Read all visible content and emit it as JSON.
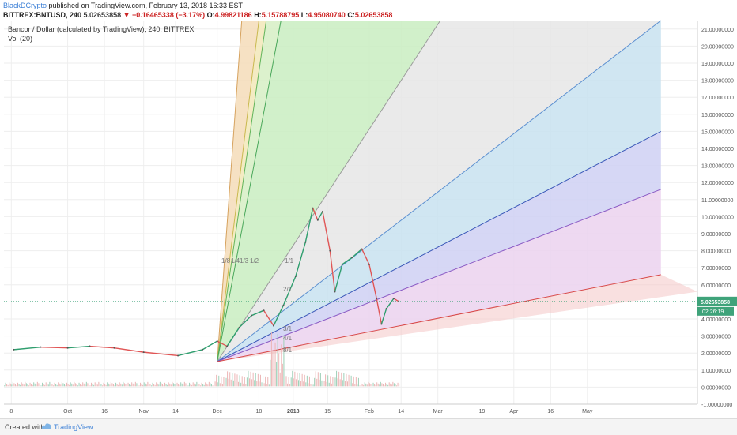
{
  "header": {
    "author": "BlackDCrypto",
    "published": "published on TradingView.com, February 13, 2018 16:33 EST",
    "symbol": "BITTREX:BNTUSD, 240",
    "last": "5.02653858",
    "change": "▼ −0.16465338 (−3.17%)",
    "o_label": "O:",
    "o": "4.99821186",
    "h_label": "H:",
    "h": "5.15788795",
    "l_label": "L:",
    "l": "4.95080740",
    "c_label": "C:",
    "c": "5.02653858"
  },
  "legend": {
    "title": "Bancor / Dollar (calculated by TradingView), 240, BITTREX",
    "vol": "Vol (20)"
  },
  "price_tag": "5.02653858",
  "timer_tag": "02:26:19",
  "footer": {
    "created": "Created with",
    "brand": "TradingView"
  },
  "colors": {
    "up": "#2f9e6e",
    "down": "#e05555",
    "fan_line_red": "#d84a4a",
    "fan_line_blue": "#3a57b8",
    "grid": "#eeeeee",
    "tag": "#3fa37a"
  },
  "chart_data": {
    "type": "line",
    "title": "Bancor / Dollar (calculated by TradingView), 240, BITTREX",
    "ylim": [
      -1,
      21.5
    ],
    "y_ticks": [
      "-1.00000000",
      "0.00000000",
      "1.00000000",
      "2.00000000",
      "3.00000000",
      "4.00000000",
      "5.00000000",
      "6.00000000",
      "7.00000000",
      "8.00000000",
      "9.00000000",
      "10.00000000",
      "11.00000000",
      "12.00000000",
      "13.00000000",
      "14.00000000",
      "15.00000000",
      "16.00000000",
      "17.00000000",
      "18.00000000",
      "19.00000000",
      "20.00000000",
      "21.00000000"
    ],
    "x_ticks": [
      "8",
      "Oct",
      "16",
      "Nov",
      "14",
      "Dec",
      "18",
      "2018",
      "15",
      "Feb",
      "14",
      "Mar",
      "19",
      "Apr",
      "16",
      "May"
    ],
    "price_series": [
      {
        "d": "2017-09-09",
        "v": 2.2
      },
      {
        "d": "2017-09-20",
        "v": 2.35
      },
      {
        "d": "2017-10-01",
        "v": 2.3
      },
      {
        "d": "2017-10-10",
        "v": 2.4
      },
      {
        "d": "2017-10-20",
        "v": 2.3
      },
      {
        "d": "2017-11-01",
        "v": 2.05
      },
      {
        "d": "2017-11-15",
        "v": 1.85
      },
      {
        "d": "2017-11-25",
        "v": 2.2
      },
      {
        "d": "2017-12-01",
        "v": 2.7
      },
      {
        "d": "2017-12-05",
        "v": 2.4
      },
      {
        "d": "2017-12-10",
        "v": 3.5
      },
      {
        "d": "2017-12-15",
        "v": 4.2
      },
      {
        "d": "2017-12-20",
        "v": 4.5
      },
      {
        "d": "2017-12-24",
        "v": 3.6
      },
      {
        "d": "2017-12-28",
        "v": 4.8
      },
      {
        "d": "2018-01-02",
        "v": 6.5
      },
      {
        "d": "2018-01-06",
        "v": 8.5
      },
      {
        "d": "2018-01-09",
        "v": 10.5
      },
      {
        "d": "2018-01-11",
        "v": 9.8
      },
      {
        "d": "2018-01-13",
        "v": 10.3
      },
      {
        "d": "2018-01-16",
        "v": 8.0
      },
      {
        "d": "2018-01-18",
        "v": 5.6
      },
      {
        "d": "2018-01-21",
        "v": 7.2
      },
      {
        "d": "2018-01-25",
        "v": 7.6
      },
      {
        "d": "2018-01-29",
        "v": 8.1
      },
      {
        "d": "2018-02-01",
        "v": 7.2
      },
      {
        "d": "2018-02-04",
        "v": 5.2
      },
      {
        "d": "2018-02-06",
        "v": 3.7
      },
      {
        "d": "2018-02-08",
        "v": 4.6
      },
      {
        "d": "2018-02-11",
        "v": 5.2
      },
      {
        "d": "2018-02-13",
        "v": 5.03
      }
    ],
    "gann_fan": {
      "origin": {
        "d": "2017-12-01",
        "v": 1.5
      },
      "lines": [
        {
          "label": "1/8",
          "end": {
            "d": "2017-12-11",
            "v": 21.5
          }
        },
        {
          "label": "1/4",
          "end": {
            "d": "2017-12-18",
            "v": 21.5
          }
        },
        {
          "label": "1/3",
          "end": {
            "d": "2017-12-21",
            "v": 21.5
          }
        },
        {
          "label": "1/2",
          "end": {
            "d": "2017-12-27",
            "v": 21.5
          }
        },
        {
          "label": "1/1",
          "end": {
            "d": "2018-03-02",
            "v": 21.5
          }
        },
        {
          "label": "2/1",
          "end": {
            "d": "2018-05-31",
            "v": 21.5
          }
        },
        {
          "label": "3/1",
          "end": {
            "d": "2018-05-31",
            "v": 15.0
          }
        },
        {
          "label": "4/1",
          "end": {
            "d": "2018-05-31",
            "v": 11.6
          }
        },
        {
          "label": "8/1",
          "end": {
            "d": "2018-05-31",
            "v": 6.6
          }
        }
      ]
    },
    "current_price": 5.02653858
  }
}
